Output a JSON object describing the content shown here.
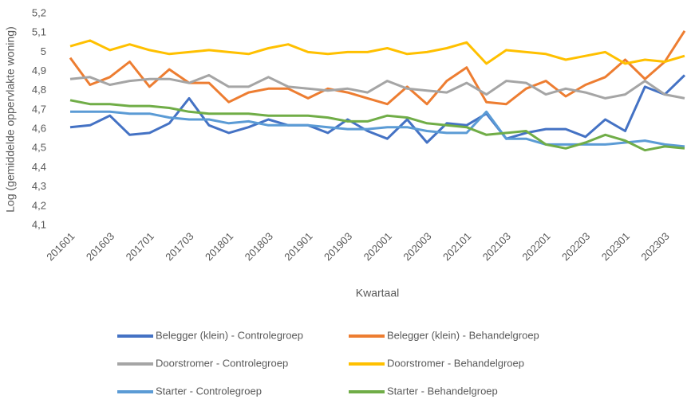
{
  "chart_data": {
    "type": "line",
    "y_label": "Log (gemiddelde oppervlakte woning)",
    "x_label": "Kwartaal",
    "categories": [
      "201601",
      null,
      "201603",
      null,
      "201701",
      null,
      "201703",
      null,
      "201801",
      null,
      "201803",
      null,
      "201901",
      null,
      "201903",
      null,
      "202001",
      null,
      "202003",
      null,
      "202101",
      null,
      "202103",
      null,
      "202201",
      null,
      "202203",
      null,
      "202301",
      null,
      "202303",
      null
    ],
    "ylim": [
      4.1,
      5.2
    ],
    "yticks": [
      {
        "value": 4.1,
        "label": "4,1"
      },
      {
        "value": 4.2,
        "label": "4,2"
      },
      {
        "value": 4.3,
        "label": "4,3"
      },
      {
        "value": 4.4,
        "label": "4,4"
      },
      {
        "value": 4.5,
        "label": "4,5"
      },
      {
        "value": 4.6,
        "label": "4,6"
      },
      {
        "value": 4.7,
        "label": "4,7"
      },
      {
        "value": 4.8,
        "label": "4,8"
      },
      {
        "value": 4.9,
        "label": "4,9"
      },
      {
        "value": 5,
        "label": "5"
      },
      {
        "value": 5.1,
        "label": "5,1"
      },
      {
        "value": 5.2,
        "label": "5,2"
      }
    ],
    "grid": false,
    "legend": "bottom",
    "series": [
      {
        "name": "Belegger (klein) - Controlegroep",
        "color": "#4472c4",
        "values": [
          4.61,
          4.62,
          4.67,
          4.57,
          4.58,
          4.63,
          4.76,
          4.62,
          4.58,
          4.61,
          4.65,
          4.62,
          4.62,
          4.58,
          4.65,
          4.59,
          4.55,
          4.65,
          4.53,
          4.63,
          4.62,
          4.68,
          4.55,
          4.58,
          4.6,
          4.6,
          4.56,
          4.65,
          4.59,
          4.82,
          4.78,
          4.88
        ]
      },
      {
        "name": "Belegger (klein) - Behandelgroep",
        "color": "#ed7d31",
        "values": [
          4.97,
          4.83,
          4.87,
          4.95,
          4.82,
          4.91,
          4.84,
          4.84,
          4.74,
          4.79,
          4.81,
          4.81,
          4.76,
          4.81,
          4.79,
          4.76,
          4.73,
          4.82,
          4.73,
          4.85,
          4.92,
          4.74,
          4.73,
          4.81,
          4.85,
          4.77,
          4.83,
          4.87,
          4.96,
          4.86,
          4.95,
          5.11
        ]
      },
      {
        "name": "Doorstromer - Controlegroep",
        "color": "#a5a5a5",
        "values": [
          4.86,
          4.87,
          4.83,
          4.85,
          4.86,
          4.86,
          4.84,
          4.88,
          4.82,
          4.82,
          4.87,
          4.82,
          4.81,
          4.8,
          4.81,
          4.79,
          4.85,
          4.81,
          4.8,
          4.79,
          4.84,
          4.78,
          4.85,
          4.84,
          4.78,
          4.81,
          4.79,
          4.76,
          4.78,
          4.85,
          4.78,
          4.76
        ]
      },
      {
        "name": "Doorstromer - Behandelgroep",
        "color": "#ffc000",
        "values": [
          5.03,
          5.06,
          5.01,
          5.04,
          5.01,
          4.99,
          5.0,
          5.01,
          5.0,
          4.99,
          5.02,
          5.04,
          5.0,
          4.99,
          5.0,
          5.0,
          5.02,
          4.99,
          5.0,
          5.02,
          5.05,
          4.94,
          5.01,
          5.0,
          4.99,
          4.96,
          4.98,
          5.0,
          4.94,
          4.96,
          4.95,
          4.98
        ]
      },
      {
        "name": "Starter - Controlegroep",
        "color": "#5b9bd5",
        "values": [
          4.69,
          4.69,
          4.69,
          4.68,
          4.68,
          4.66,
          4.65,
          4.65,
          4.63,
          4.64,
          4.62,
          4.62,
          4.62,
          4.61,
          4.6,
          4.6,
          4.61,
          4.61,
          4.59,
          4.58,
          4.58,
          4.69,
          4.55,
          4.55,
          4.52,
          4.52,
          4.52,
          4.52,
          4.53,
          4.54,
          4.52,
          4.51
        ]
      },
      {
        "name": "Starter - Behandelgroep",
        "color": "#70ad47",
        "values": [
          4.75,
          4.73,
          4.73,
          4.72,
          4.72,
          4.71,
          4.69,
          4.68,
          4.68,
          4.68,
          4.67,
          4.67,
          4.67,
          4.66,
          4.64,
          4.64,
          4.67,
          4.66,
          4.63,
          4.62,
          4.61,
          4.57,
          4.58,
          4.59,
          4.52,
          4.5,
          4.53,
          4.57,
          4.54,
          4.49,
          4.51,
          4.5
        ]
      }
    ]
  }
}
